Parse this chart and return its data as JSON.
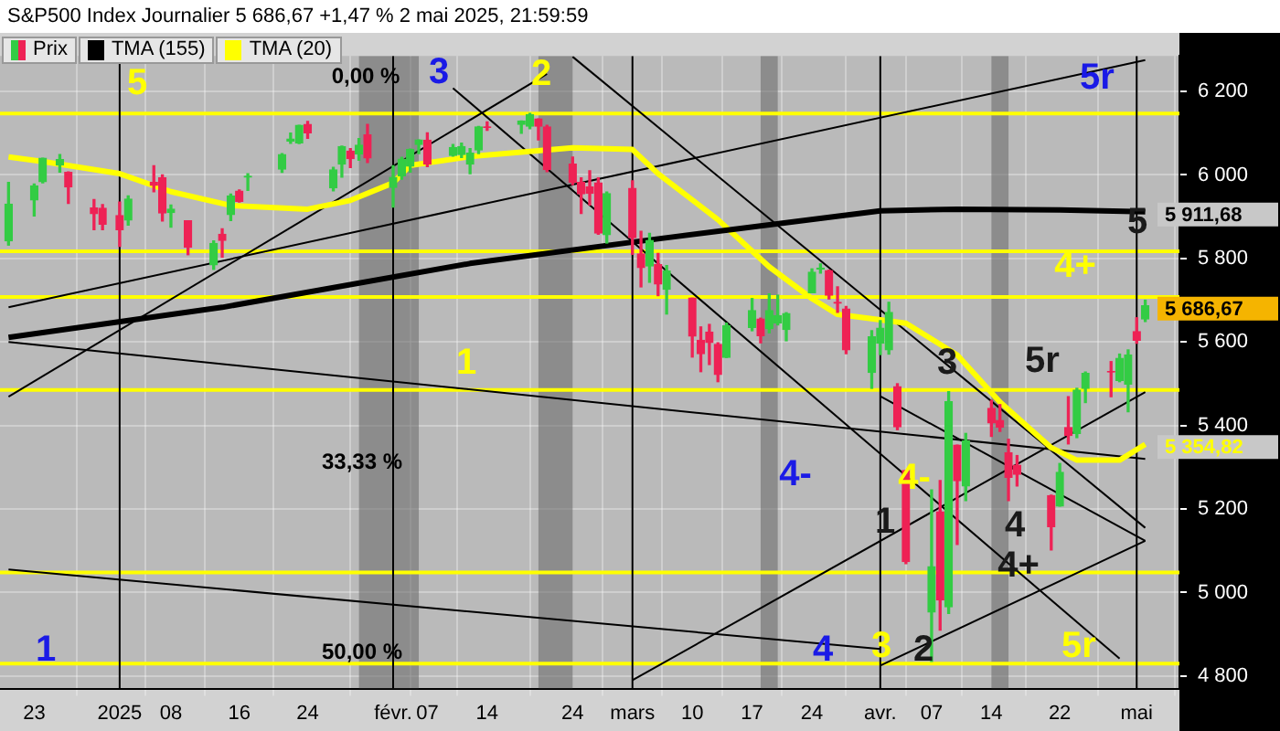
{
  "chart_data": {
    "type": "candlestick",
    "title": "S&P500 Index Journalier 5 686,67 +1,47 % 2 mai 2025, 21:59:59",
    "x": [
      "2024-12-20",
      "2024-12-23",
      "2024-12-24",
      "2024-12-26",
      "2024-12-27",
      "2024-12-30",
      "2024-12-31",
      "2025-01-02",
      "2025-01-03",
      "2025-01-06",
      "2025-01-07",
      "2025-01-08",
      "2025-01-10",
      "2025-01-13",
      "2025-01-14",
      "2025-01-15",
      "2025-01-16",
      "2025-01-17",
      "2025-01-21",
      "2025-01-22",
      "2025-01-23",
      "2025-01-24",
      "2025-01-27",
      "2025-01-28",
      "2025-01-29",
      "2025-01-30",
      "2025-01-31",
      "2025-02-03",
      "2025-02-04",
      "2025-02-05",
      "2025-02-06",
      "2025-02-07",
      "2025-02-10",
      "2025-02-11",
      "2025-02-12",
      "2025-02-13",
      "2025-02-14",
      "2025-02-18",
      "2025-02-19",
      "2025-02-20",
      "2025-02-21",
      "2025-02-24",
      "2025-02-25",
      "2025-02-26",
      "2025-02-27",
      "2025-02-28",
      "2025-03-03",
      "2025-03-04",
      "2025-03-05",
      "2025-03-06",
      "2025-03-07",
      "2025-03-10",
      "2025-03-11",
      "2025-03-12",
      "2025-03-13",
      "2025-03-14",
      "2025-03-17",
      "2025-03-18",
      "2025-03-19",
      "2025-03-20",
      "2025-03-21",
      "2025-03-24",
      "2025-03-25",
      "2025-03-26",
      "2025-03-27",
      "2025-03-28",
      "2025-03-31",
      "2025-04-01",
      "2025-04-02",
      "2025-04-03",
      "2025-04-04",
      "2025-04-07",
      "2025-04-08",
      "2025-04-09",
      "2025-04-10",
      "2025-04-11",
      "2025-04-14",
      "2025-04-15",
      "2025-04-16",
      "2025-04-17",
      "2025-04-21",
      "2025-04-22",
      "2025-04-23",
      "2025-04-24",
      "2025-04-25",
      "2025-04-28",
      "2025-04-29",
      "2025-04-30",
      "2025-05-01",
      "2025-05-02"
    ],
    "xlim": [
      "2024-12-19",
      "2025-05-06"
    ],
    "xticks": [
      {
        "value": "2024-12-23",
        "label": "23"
      },
      {
        "value": "2025-01-02",
        "label": "2025"
      },
      {
        "value": "2025-01-08",
        "label": "08"
      },
      {
        "value": "2025-01-16",
        "label": "16"
      },
      {
        "value": "2025-01-24",
        "label": "24"
      },
      {
        "value": "2025-02-03",
        "label": "févr."
      },
      {
        "value": "2025-02-07",
        "label": "07"
      },
      {
        "value": "2025-02-14",
        "label": "14"
      },
      {
        "value": "2025-02-24",
        "label": "24"
      },
      {
        "value": "2025-03-03",
        "label": "mars"
      },
      {
        "value": "2025-03-10",
        "label": "10"
      },
      {
        "value": "2025-03-17",
        "label": "17"
      },
      {
        "value": "2025-03-24",
        "label": "24"
      },
      {
        "value": "2025-04-01",
        "label": "avr."
      },
      {
        "value": "2025-04-07",
        "label": "07"
      },
      {
        "value": "2025-04-14",
        "label": "14"
      },
      {
        "value": "2025-04-22",
        "label": "22"
      },
      {
        "value": "2025-05-01",
        "label": "mai"
      }
    ],
    "ylim": [
      4770,
      6285
    ],
    "yticks": [
      {
        "value": 4800,
        "label": "4 800"
      },
      {
        "value": 5000,
        "label": "5 000"
      },
      {
        "value": 5200,
        "label": "5 200"
      },
      {
        "value": 5400,
        "label": "5 400"
      },
      {
        "value": 5600,
        "label": "5 600"
      },
      {
        "value": 5800,
        "label": "5 800"
      },
      {
        "value": 6000,
        "label": "6 000"
      },
      {
        "value": 6200,
        "label": "6 200"
      }
    ],
    "grid": true,
    "legend": "top left",
    "series": [
      {
        "type": "line",
        "name": "TMA (155)",
        "color": "#000000",
        "x": [
          "2024-12-20",
          "2025-01-14",
          "2025-02-12",
          "2025-03-06",
          "2025-04-01",
          "2025-04-10",
          "2025-04-22",
          "2025-05-02"
        ],
        "values": [
          5611,
          5683,
          5788,
          5847,
          5914,
          5918,
          5916,
          5911.68
        ],
        "value_labels": [
          null,
          null,
          null,
          null,
          null,
          null,
          null,
          "5 911,68"
        ]
      },
      {
        "type": "line",
        "name": "TMA (20)",
        "color": "#ffff00",
        "x": [
          "2024-12-20",
          "2024-12-24",
          "2025-01-02",
          "2025-01-08",
          "2025-01-15",
          "2025-01-24",
          "2025-01-29",
          "2025-02-03",
          "2025-02-05",
          "2025-02-12",
          "2025-02-24",
          "2025-03-03",
          "2025-03-06",
          "2025-03-13",
          "2025-03-19",
          "2025-03-24",
          "2025-03-27",
          "2025-04-01",
          "2025-04-04",
          "2025-04-10",
          "2025-04-15",
          "2025-04-21",
          "2025-04-24",
          "2025-04-29",
          "2025-05-02"
        ],
        "values": [
          6043,
          6032,
          6003,
          5960,
          5927,
          5918,
          5939,
          5981,
          6023,
          6044,
          6065,
          6061,
          6003,
          5893,
          5780,
          5704,
          5666,
          5653,
          5645,
          5569,
          5456,
          5347,
          5317,
          5317,
          5354.82
        ],
        "value_labels": [
          null,
          null,
          null,
          null,
          null,
          null,
          null,
          null,
          null,
          null,
          null,
          null,
          null,
          null,
          null,
          null,
          null,
          null,
          null,
          null,
          null,
          null,
          null,
          null,
          "5 354,82"
        ]
      },
      {
        "type": "line",
        "color": "#000000",
        "x": [
          "2024-12-20",
          "2025-05-02"
        ],
        "values": [
          5683,
          6275
        ]
      },
      {
        "type": "line",
        "color": "#000000",
        "x": [
          "2025-02-24",
          "2025-05-02"
        ],
        "values": [
          6283,
          5155
        ]
      },
      {
        "type": "line",
        "color": "#000000",
        "x": [
          "2025-02-10",
          "2025-04-29"
        ],
        "values": [
          6208,
          4842
        ]
      },
      {
        "type": "line",
        "color": "#000000",
        "x": [
          "2024-12-20",
          "2025-02-21"
        ],
        "values": [
          5469,
          6242
        ]
      },
      {
        "type": "line",
        "color": "#000000",
        "x": [
          "2024-12-20",
          "2025-05-02"
        ],
        "values": [
          5600,
          5320
        ]
      },
      {
        "type": "line",
        "color": "#000000",
        "x": [
          "2024-12-20",
          "2025-04-01"
        ],
        "values": [
          5055,
          4865
        ]
      },
      {
        "type": "line",
        "color": "#000000",
        "x": [
          "2025-03-03",
          "2025-05-02"
        ],
        "values": [
          4790,
          5480
        ]
      },
      {
        "type": "line",
        "color": "#000000",
        "x": [
          "2025-04-01",
          "2025-05-02"
        ],
        "values": [
          4825,
          5124
        ]
      },
      {
        "type": "line",
        "color": "#000000",
        "x": [
          "2025-04-01",
          "2025-05-02"
        ],
        "values": [
          5470,
          5124
        ]
      },
      {
        "name": "Prix",
        "ohlc": [
          [
            5842,
            5982,
            5832,
            5930
          ],
          [
            5940,
            5978,
            5902,
            5974
          ],
          [
            5984,
            6040,
            5981,
            6040
          ],
          [
            6024,
            6049,
            6007,
            6037
          ],
          [
            6006,
            6007,
            5932,
            5971
          ],
          [
            5921,
            5941,
            5869,
            5907
          ],
          [
            5920,
            5929,
            5869,
            5882
          ],
          [
            5903,
            5935,
            5829,
            5869
          ],
          [
            5892,
            5950,
            5880,
            5942
          ],
          [
            5982,
            6022,
            5960,
            5975
          ],
          [
            5993,
            6000,
            5890,
            5909
          ],
          [
            5910,
            5928,
            5875,
            5918
          ],
          [
            5890,
            5890,
            5809,
            5827
          ],
          [
            5785,
            5842,
            5774,
            5836
          ],
          [
            5858,
            5871,
            5803,
            5843
          ],
          [
            5905,
            5954,
            5891,
            5950
          ],
          [
            5961,
            5964,
            5935,
            5937
          ],
          [
            5995,
            6003,
            5963,
            5997
          ],
          [
            6014,
            6051,
            6006,
            6049
          ],
          [
            6081,
            6100,
            6076,
            6086
          ],
          [
            6077,
            6119,
            6075,
            6119
          ],
          [
            6121,
            6128,
            6088,
            6101
          ],
          [
            5969,
            6018,
            5962,
            6012
          ],
          [
            6026,
            6069,
            5995,
            6068
          ],
          [
            6057,
            6063,
            6018,
            6039
          ],
          [
            6050,
            6087,
            6035,
            6071
          ],
          [
            6096,
            6121,
            6030,
            6041
          ],
          [
            5970,
            6022,
            5923,
            5994
          ],
          [
            5998,
            6042,
            5990,
            6038
          ],
          [
            6021,
            6062,
            6007,
            6061
          ],
          [
            6073,
            6084,
            6051,
            6084
          ],
          [
            6083,
            6101,
            6020,
            6026
          ],
          [
            6047,
            6073,
            6045,
            6066
          ],
          [
            6049,
            6076,
            6042,
            6068
          ],
          [
            6026,
            6063,
            6003,
            6052
          ],
          [
            6060,
            6116,
            6051,
            6115
          ],
          [
            6115,
            6127,
            6107,
            6114
          ],
          [
            6121,
            6129,
            6100,
            6129
          ],
          [
            6117,
            6147,
            6111,
            6144
          ],
          [
            6134,
            6134,
            6084,
            6117
          ],
          [
            6115,
            6119,
            6008,
            6013
          ],
          [
            6026,
            6043,
            5977,
            5983
          ],
          [
            5982,
            5993,
            5908,
            5955
          ],
          [
            5971,
            6010,
            5928,
            5956
          ],
          [
            5981,
            5993,
            5858,
            5861
          ],
          [
            5857,
            5959,
            5837,
            5955
          ],
          [
            5968,
            5986,
            5810,
            5850
          ],
          [
            5811,
            5865,
            5732,
            5778
          ],
          [
            5782,
            5860,
            5743,
            5843
          ],
          [
            5785,
            5812,
            5711,
            5739
          ],
          [
            5726,
            5783,
            5667,
            5770
          ],
          [
            5705,
            5705,
            5564,
            5614
          ],
          [
            5604,
            5636,
            5529,
            5572
          ],
          [
            5624,
            5642,
            5546,
            5599
          ],
          [
            5594,
            5598,
            5505,
            5522
          ],
          [
            5563,
            5645,
            5563,
            5639
          ],
          [
            5635,
            5704,
            5627,
            5675
          ],
          [
            5655,
            5657,
            5598,
            5615
          ],
          [
            5632,
            5715,
            5622,
            5675
          ],
          [
            5646,
            5712,
            5641,
            5663
          ],
          [
            5630,
            5670,
            5603,
            5668
          ],
          [
            5718,
            5775,
            5718,
            5767
          ],
          [
            5775,
            5787,
            5765,
            5777
          ],
          [
            5771,
            5772,
            5703,
            5712
          ],
          [
            5695,
            5732,
            5671,
            5693
          ],
          [
            5679,
            5685,
            5572,
            5581
          ],
          [
            5527,
            5627,
            5489,
            5612
          ],
          [
            5597,
            5651,
            5570,
            5633
          ],
          [
            5581,
            5695,
            5571,
            5671
          ],
          [
            5493,
            5500,
            5390,
            5397
          ],
          [
            5292,
            5292,
            5069,
            5074
          ],
          [
            4953,
            5246,
            4835,
            5062
          ],
          [
            5193,
            5268,
            4910,
            4982
          ],
          [
            4966,
            5481,
            4950,
            5457
          ],
          [
            5353,
            5353,
            5115,
            5268
          ],
          [
            5255,
            5381,
            5220,
            5363
          ],
          [
            5441,
            5460,
            5374,
            5406
          ],
          [
            5412,
            5450,
            5386,
            5396
          ],
          [
            5335,
            5367,
            5220,
            5276
          ],
          [
            5305,
            5328,
            5255,
            5283
          ],
          [
            5232,
            5233,
            5102,
            5158
          ],
          [
            5207,
            5309,
            5207,
            5288
          ],
          [
            5395,
            5469,
            5356,
            5376
          ],
          [
            5381,
            5489,
            5371,
            5485
          ],
          [
            5489,
            5528,
            5455,
            5525
          ],
          [
            5529,
            5553,
            5469,
            5528
          ],
          [
            5508,
            5571,
            5505,
            5561
          ],
          [
            5499,
            5581,
            5433,
            5569
          ],
          [
            5625,
            5658,
            5597,
            5604
          ],
          [
            5655,
            5700,
            5649,
            5686.67
          ]
        ],
        "colors": [
          "#33cc44",
          "#33cc44",
          "#33cc44",
          "#33cc44",
          "#ee2255",
          "#ee2255",
          "#ee2255",
          "#ee2255",
          "#33cc44",
          "#ee2255",
          "#ee2255",
          "#33cc44",
          "#ee2255",
          "#33cc44",
          "#ee2255",
          "#33cc44",
          "#ee2255",
          "#33cc44",
          "#33cc44",
          "#33cc44",
          "#33cc44",
          "#ee2255",
          "#33cc44",
          "#33cc44",
          "#ee2255",
          "#33cc44",
          "#ee2255",
          "#33cc44",
          "#33cc44",
          "#33cc44",
          "#33cc44",
          "#ee2255",
          "#33cc44",
          "#33cc44",
          "#33cc44",
          "#33cc44",
          "#ee2255",
          "#33cc44",
          "#33cc44",
          "#ee2255",
          "#ee2255",
          "#ee2255",
          "#ee2255",
          "#ee2255",
          "#ee2255",
          "#33cc44",
          "#ee2255",
          "#ee2255",
          "#33cc44",
          "#ee2255",
          "#33cc44",
          "#ee2255",
          "#ee2255",
          "#ee2255",
          "#ee2255",
          "#33cc44",
          "#33cc44",
          "#ee2255",
          "#33cc44",
          "#33cc44",
          "#33cc44",
          "#33cc44",
          "#33cc44",
          "#ee2255",
          "#ee2255",
          "#ee2255",
          "#33cc44",
          "#33cc44",
          "#33cc44",
          "#ee2255",
          "#ee2255",
          "#33cc44",
          "#ee2255",
          "#33cc44",
          "#ee2255",
          "#33cc44",
          "#ee2255",
          "#ee2255",
          "#ee2255",
          "#ee2255",
          "#ee2255",
          "#33cc44",
          "#ee2255",
          "#33cc44",
          "#33cc44",
          "#ee2255",
          "#33cc44",
          "#33cc44",
          "#ee2255",
          "#33cc44"
        ],
        "value_labels": [
          null,
          null,
          null,
          null,
          null,
          null,
          null,
          null,
          null,
          null,
          null,
          null,
          null,
          null,
          null,
          null,
          null,
          null,
          null,
          null,
          null,
          null,
          null,
          null,
          null,
          null,
          null,
          null,
          null,
          null,
          null,
          null,
          null,
          null,
          null,
          null,
          null,
          null,
          null,
          null,
          null,
          null,
          null,
          null,
          null,
          null,
          null,
          null,
          null,
          null,
          null,
          null,
          null,
          null,
          null,
          null,
          null,
          null,
          null,
          null,
          null,
          null,
          null,
          null,
          null,
          null,
          null,
          null,
          null,
          null,
          null,
          null,
          null,
          null,
          null,
          null,
          null,
          null,
          null,
          null,
          null,
          null,
          null,
          null,
          null,
          null,
          null,
          null,
          null,
          "5 686,67"
        ]
      }
    ],
    "ref_lines": [
      {
        "axis": "y",
        "value": 6147,
        "color": "#ffff00"
      },
      {
        "axis": "y",
        "value": 5817,
        "color": "#ffff00"
      },
      {
        "axis": "y",
        "value": 5708,
        "color": "#ffff00"
      },
      {
        "axis": "y",
        "value": 5485,
        "color": "#ffff00"
      },
      {
        "axis": "y",
        "value": 5048,
        "color": "#ffff00"
      },
      {
        "axis": "y",
        "value": 4830,
        "color": "#ffff00"
      },
      {
        "axis": "x",
        "value": "2025-01-02",
        "color": "#000000"
      },
      {
        "axis": "x",
        "value": "2025-02-03",
        "color": "#000000"
      },
      {
        "axis": "x",
        "value": "2025-03-03",
        "color": "#000000"
      },
      {
        "axis": "x",
        "value": "2025-04-01",
        "color": "#000000"
      },
      {
        "axis": "x",
        "value": "2025-05-01",
        "color": "#000000"
      }
    ],
    "bands": [
      {
        "axis": "x",
        "from": "2025-01-30",
        "to": "2025-02-06",
        "color": "#6e6e6e"
      },
      {
        "axis": "x",
        "from": "2025-02-20",
        "to": "2025-02-24",
        "color": "#6e6e6e"
      },
      {
        "axis": "x",
        "from": "2025-03-18",
        "to": "2025-03-20",
        "color": "#6e6e6e"
      },
      {
        "axis": "x",
        "from": "2025-04-14",
        "to": "2025-04-16",
        "color": "#6e6e6e"
      }
    ],
    "annotations": [
      "0,00 %",
      "33,33 %",
      "50,00 %",
      "5",
      "3",
      "2",
      "5r",
      "1",
      "4-",
      "4+",
      "5",
      "5r",
      "3",
      "4-",
      "1",
      "4",
      "4+",
      "3",
      "2",
      "5r",
      "4",
      "1"
    ]
  }
}
